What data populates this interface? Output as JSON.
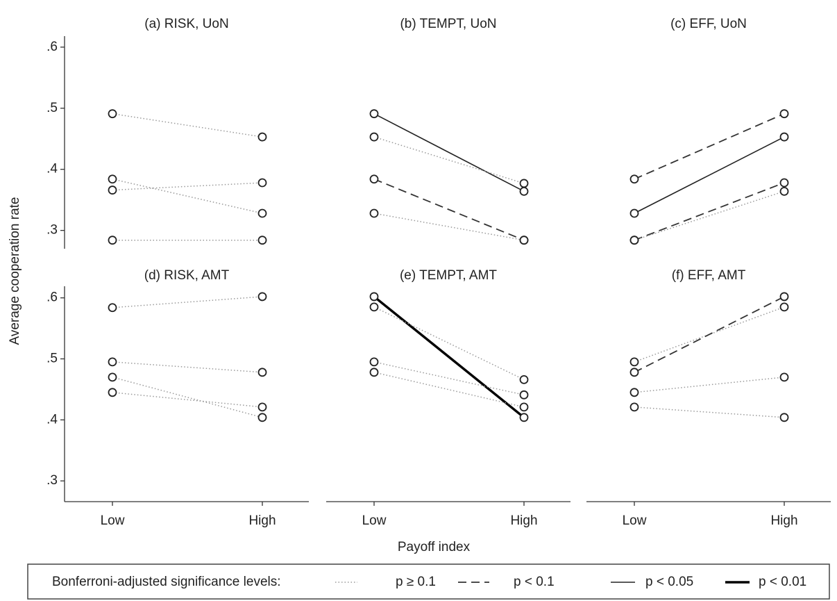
{
  "ylabel": "Average cooperation rate",
  "xlabel": "Payoff index",
  "legend": {
    "title": "Bonferroni-adjusted significance levels:",
    "entries": [
      {
        "label": "p ≥ 0.1",
        "linestyle": "dotted"
      },
      {
        "label": "p < 0.1",
        "linestyle": "dashed"
      },
      {
        "label": "p < 0.05",
        "linestyle": "solid"
      },
      {
        "label": "p < 0.01",
        "linestyle": "thick"
      }
    ]
  },
  "chart_data": [
    {
      "type": "line",
      "title": "(a) RISK, UoN",
      "ylim": [
        0.27,
        0.618
      ],
      "yticks": [
        {
          "value": 0.3,
          "label": ".3"
        },
        {
          "value": 0.4,
          "label": ".4"
        },
        {
          "value": 0.5,
          "label": ".5"
        },
        {
          "value": 0.6,
          "label": ".6"
        }
      ],
      "series": [
        {
          "values": [
            0.491,
            0.453
          ],
          "linestyle": "dotted"
        },
        {
          "values": [
            0.384,
            0.328
          ],
          "linestyle": "dotted"
        },
        {
          "values": [
            0.366,
            0.378
          ],
          "linestyle": "dotted"
        },
        {
          "values": [
            0.284,
            0.284
          ],
          "linestyle": "dotted"
        }
      ]
    },
    {
      "type": "line",
      "title": "(b) TEMPT, UoN",
      "ylim": [
        0.27,
        0.618
      ],
      "series": [
        {
          "values": [
            0.491,
            0.364
          ],
          "linestyle": "solid"
        },
        {
          "values": [
            0.453,
            0.377
          ],
          "linestyle": "dotted"
        },
        {
          "values": [
            0.384,
            0.284
          ],
          "linestyle": "dashed"
        },
        {
          "values": [
            0.328,
            0.284
          ],
          "linestyle": "dotted"
        }
      ]
    },
    {
      "type": "line",
      "title": "(c) EFF, UoN",
      "ylim": [
        0.27,
        0.618
      ],
      "series": [
        {
          "values": [
            0.384,
            0.491
          ],
          "linestyle": "dashed"
        },
        {
          "values": [
            0.328,
            0.453
          ],
          "linestyle": "solid"
        },
        {
          "values": [
            0.284,
            0.378
          ],
          "linestyle": "dashed"
        },
        {
          "values": [
            0.284,
            0.364
          ],
          "linestyle": "dotted"
        }
      ]
    },
    {
      "type": "line",
      "title": "(d) RISK, AMT",
      "ylim": [
        0.266,
        0.619
      ],
      "categories": [
        "Low",
        "High"
      ],
      "yticks": [
        {
          "value": 0.3,
          "label": ".3"
        },
        {
          "value": 0.4,
          "label": ".4"
        },
        {
          "value": 0.5,
          "label": ".5"
        },
        {
          "value": 0.6,
          "label": ".6"
        }
      ],
      "series": [
        {
          "values": [
            0.584,
            0.602
          ],
          "linestyle": "dotted"
        },
        {
          "values": [
            0.495,
            0.478
          ],
          "linestyle": "dotted"
        },
        {
          "values": [
            0.47,
            0.404
          ],
          "linestyle": "dotted"
        },
        {
          "values": [
            0.445,
            0.421
          ],
          "linestyle": "dotted"
        }
      ]
    },
    {
      "type": "line",
      "title": "(e) TEMPT, AMT",
      "ylim": [
        0.266,
        0.619
      ],
      "categories": [
        "Low",
        "High"
      ],
      "series": [
        {
          "values": [
            0.602,
            0.404
          ],
          "linestyle": "thick"
        },
        {
          "values": [
            0.585,
            0.466
          ],
          "linestyle": "dotted"
        },
        {
          "values": [
            0.495,
            0.441
          ],
          "linestyle": "dotted"
        },
        {
          "values": [
            0.478,
            0.421
          ],
          "linestyle": "dotted"
        }
      ]
    },
    {
      "type": "line",
      "title": "(f) EFF, AMT",
      "ylim": [
        0.266,
        0.619
      ],
      "categories": [
        "Low",
        "High"
      ],
      "series": [
        {
          "values": [
            0.495,
            0.585
          ],
          "linestyle": "dotted"
        },
        {
          "values": [
            0.478,
            0.602
          ],
          "linestyle": "dashed"
        },
        {
          "values": [
            0.445,
            0.47
          ],
          "linestyle": "dotted"
        },
        {
          "values": [
            0.421,
            0.404
          ],
          "linestyle": "dotted"
        }
      ]
    }
  ]
}
